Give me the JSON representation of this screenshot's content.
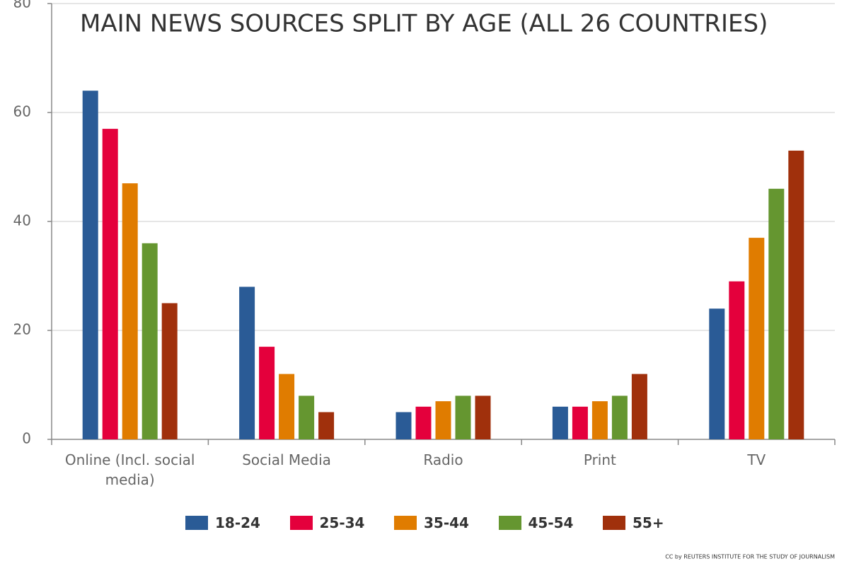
{
  "chart_data": {
    "type": "bar",
    "title": "MAIN NEWS SOURCES SPLIT BY AGE (ALL 26 COUNTRIES)",
    "credit": "CC by REUTERS INSTITUTE FOR THE STUDY OF JOURNALISM",
    "categories": [
      "Online (Incl. social media)",
      "Social Media",
      "Radio",
      "Print",
      "TV"
    ],
    "series": [
      {
        "name": "18-24",
        "color": "#2a5b96",
        "values": [
          64,
          28,
          5,
          6,
          24
        ]
      },
      {
        "name": "25-34",
        "color": "#e4003c",
        "values": [
          57,
          17,
          6,
          6,
          29
        ]
      },
      {
        "name": "35-44",
        "color": "#e07c00",
        "values": [
          47,
          12,
          7,
          7,
          37
        ]
      },
      {
        "name": "45-54",
        "color": "#659630",
        "values": [
          36,
          8,
          8,
          8,
          46
        ]
      },
      {
        "name": "55+",
        "color": "#a0300c",
        "values": [
          25,
          5,
          8,
          12,
          53
        ]
      }
    ],
    "ylim": [
      0,
      80
    ],
    "yticks": [
      0,
      20,
      40,
      60,
      80
    ],
    "grid": true
  }
}
